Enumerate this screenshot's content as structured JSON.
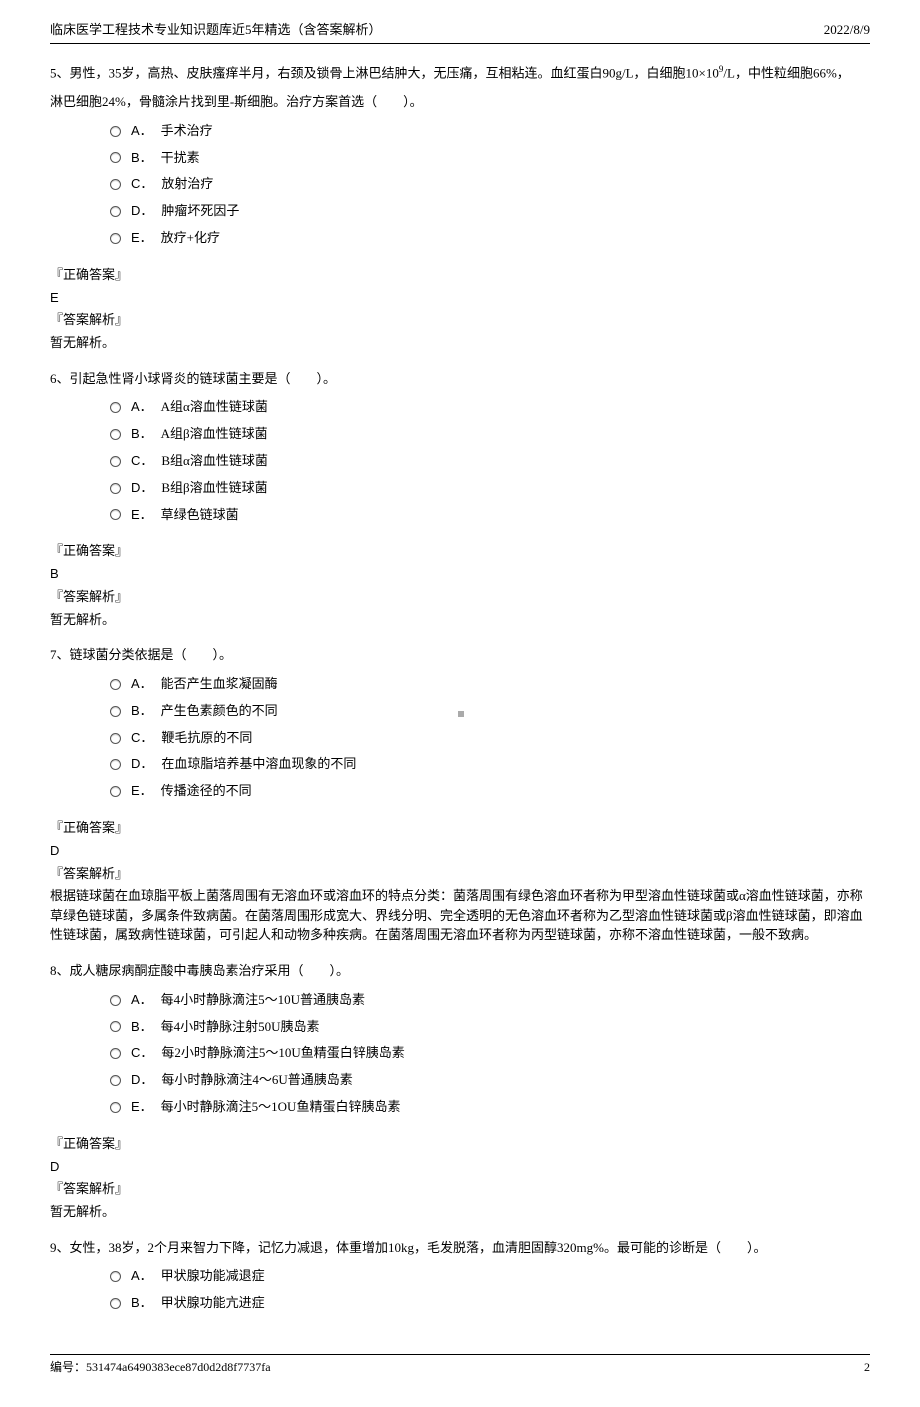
{
  "header": {
    "title": "临床医学工程技术专业知识题库近5年精选（含答案解析）",
    "date": "2022/8/9"
  },
  "questions": [
    {
      "num": "5、",
      "text_line1": "男性，35岁，高热、皮肤瘙痒半月，右颈及锁骨上淋巴结肿大，无压痛，互相粘连。血红蛋白90g/L，白细胞10×10⁹/L，中性粒细胞66%，",
      "text_line2": "淋巴细胞24%，骨髓涂片找到里-斯细胞。治疗方案首选（　　）。",
      "options": [
        {
          "letter": "A．",
          "text": "手术治疗"
        },
        {
          "letter": "B．",
          "text": "干扰素"
        },
        {
          "letter": "C．",
          "text": "放射治疗"
        },
        {
          "letter": "D．",
          "text": "肿瘤坏死因子"
        },
        {
          "letter": "E．",
          "text": "放疗+化疗"
        }
      ],
      "answer": "E",
      "explain": "暂无解析。"
    },
    {
      "num": "6、",
      "text_line1": "引起急性肾小球肾炎的链球菌主要是（　　）。",
      "text_line2": "",
      "options": [
        {
          "letter": "A．",
          "text": "A组α溶血性链球菌"
        },
        {
          "letter": "B．",
          "text": "A组β溶血性链球菌"
        },
        {
          "letter": "C．",
          "text": "B组α溶血性链球菌"
        },
        {
          "letter": "D．",
          "text": "B组β溶血性链球菌"
        },
        {
          "letter": "E．",
          "text": "草绿色链球菌"
        }
      ],
      "answer": "B",
      "explain": "暂无解析。"
    },
    {
      "num": "7、",
      "text_line1": "链球菌分类依据是（　　）。",
      "text_line2": "",
      "options": [
        {
          "letter": "A．",
          "text": "能否产生血浆凝固酶"
        },
        {
          "letter": "B．",
          "text": "产生色素颜色的不同"
        },
        {
          "letter": "C．",
          "text": "鞭毛抗原的不同"
        },
        {
          "letter": "D．",
          "text": "在血琼脂培养基中溶血现象的不同"
        },
        {
          "letter": "E．",
          "text": "传播途径的不同"
        }
      ],
      "answer": "D",
      "explain": "根据链球菌在血琼脂平板上菌落周围有无溶血环或溶血环的特点分类：菌落周围有绿色溶血环者称为甲型溶血性链球菌或α溶血性链球菌，亦称草绿色链球菌，多属条件致病菌。在菌落周围形成宽大、界线分明、完全透明的无色溶血环者称为乙型溶血性链球菌或β溶血性链球菌，即溶血性链球菌，属致病性链球菌，可引起人和动物多种疾病。在菌落周围无溶血环者称为丙型链球菌，亦称不溶血性链球菌，一般不致病。"
    },
    {
      "num": "8、",
      "text_line1": "成人糖尿病酮症酸中毒胰岛素治疗采用（　　）。",
      "text_line2": "",
      "options": [
        {
          "letter": "A．",
          "text": "每4小时静脉滴注5～10U普通胰岛素"
        },
        {
          "letter": "B．",
          "text": "每4小时静脉注射50U胰岛素"
        },
        {
          "letter": "C．",
          "text": "每2小时静脉滴注5～10U鱼精蛋白锌胰岛素"
        },
        {
          "letter": "D．",
          "text": "每小时静脉滴注4～6U普通胰岛素"
        },
        {
          "letter": "E．",
          "text": "每小时静脉滴注5～1OU鱼精蛋白锌胰岛素"
        }
      ],
      "answer": "D",
      "explain": "暂无解析。"
    },
    {
      "num": "9、",
      "text_line1": "女性，38岁，2个月来智力下降，记忆力减退，体重增加10kg，毛发脱落，血清胆固醇320mg%。最可能的诊断是（　　）。",
      "text_line2": "",
      "options": [
        {
          "letter": "A．",
          "text": "甲状腺功能减退症"
        },
        {
          "letter": "B．",
          "text": "甲状腺功能亢进症"
        }
      ],
      "answer": "",
      "explain": ""
    }
  ],
  "labels": {
    "answer_label": "『正确答案』",
    "explain_label": "『答案解析』"
  },
  "footer": {
    "code": "编号：531474a6490383ece87d0d2d8f7737fa",
    "page": "2"
  }
}
